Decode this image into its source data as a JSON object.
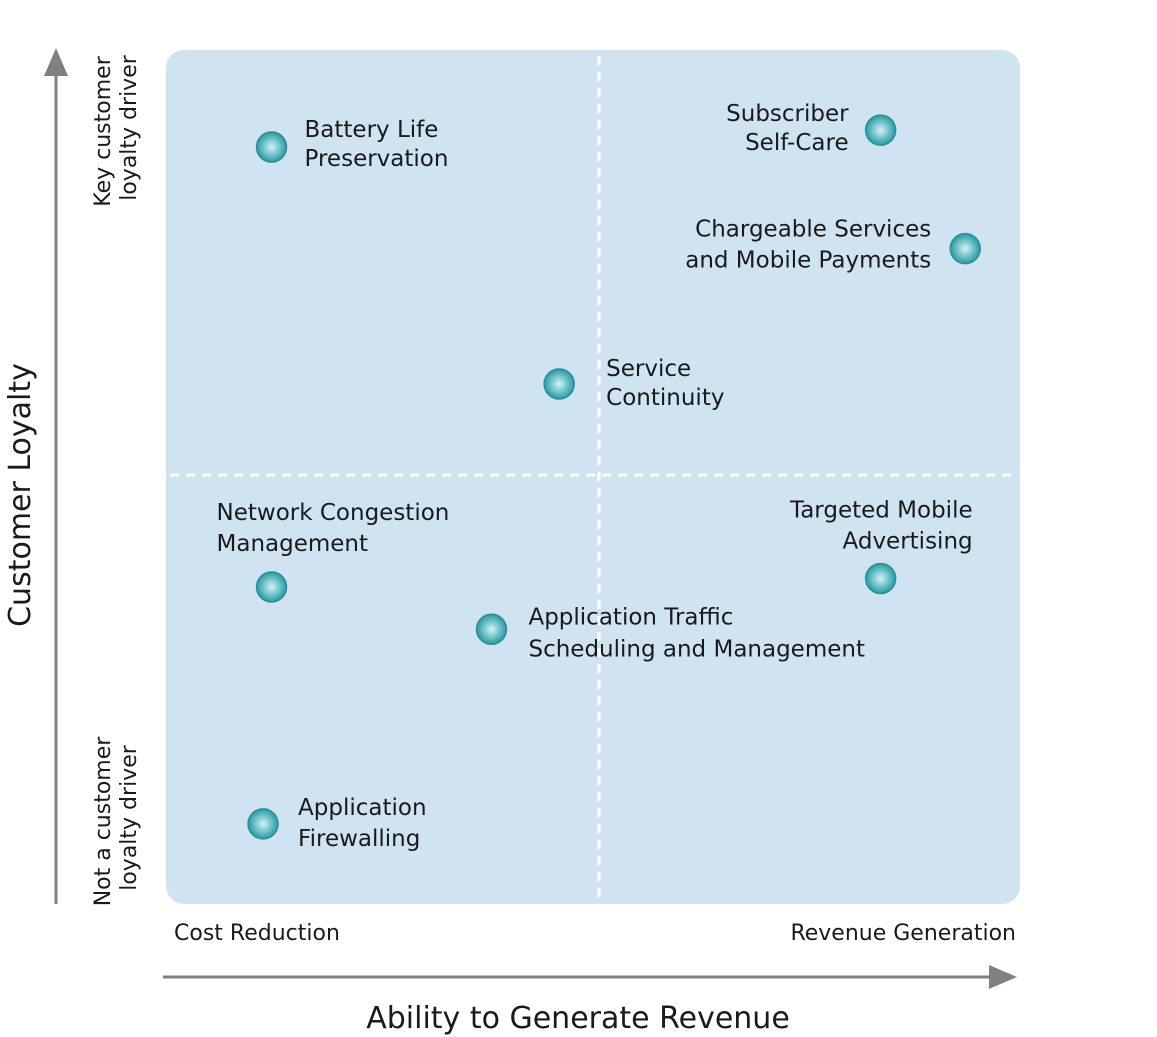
{
  "chart_data": {
    "type": "scatter",
    "title": "",
    "xlabel": "Ability to Generate Revenue",
    "ylabel": "Customer Loyalty",
    "x_range_labels": {
      "low": "Cost Reduction",
      "high": "Revenue Generation"
    },
    "y_range_labels": {
      "low": [
        "Not a customer",
        "loyalty driver"
      ],
      "high": [
        "Key customer",
        "loyalty driver"
      ]
    },
    "xlim": [
      0,
      10
    ],
    "ylim": [
      0,
      10
    ],
    "quadrant_dividers": {
      "x": 5,
      "y": 5
    },
    "points": [
      {
        "label": [
          "Battery Life",
          "Preservation"
        ],
        "x": 1.2,
        "y": 8.9
      },
      {
        "label": [
          "Subscriber",
          "Self-Care"
        ],
        "x": 8.4,
        "y": 9.1
      },
      {
        "label": [
          "Chargeable Services",
          "and Mobile Payments"
        ],
        "x": 9.4,
        "y": 7.7
      },
      {
        "label": [
          "Service",
          "Continuity"
        ],
        "x": 4.6,
        "y": 6.1
      },
      {
        "label": [
          "Network Congestion",
          "Management"
        ],
        "x": 1.2,
        "y": 3.7
      },
      {
        "label": [
          "Targeted Mobile",
          "Advertising"
        ],
        "x": 8.4,
        "y": 3.8
      },
      {
        "label": [
          "Application Traffic",
          "Scheduling and Management"
        ],
        "x": 3.8,
        "y": 3.2
      },
      {
        "label": [
          "Application",
          "Firewalling"
        ],
        "x": 1.1,
        "y": 0.9
      }
    ],
    "colors": {
      "background": "#cfe3f1",
      "point": "#3aa6b0",
      "divider": "#ffffff",
      "axis": "#808080"
    }
  }
}
